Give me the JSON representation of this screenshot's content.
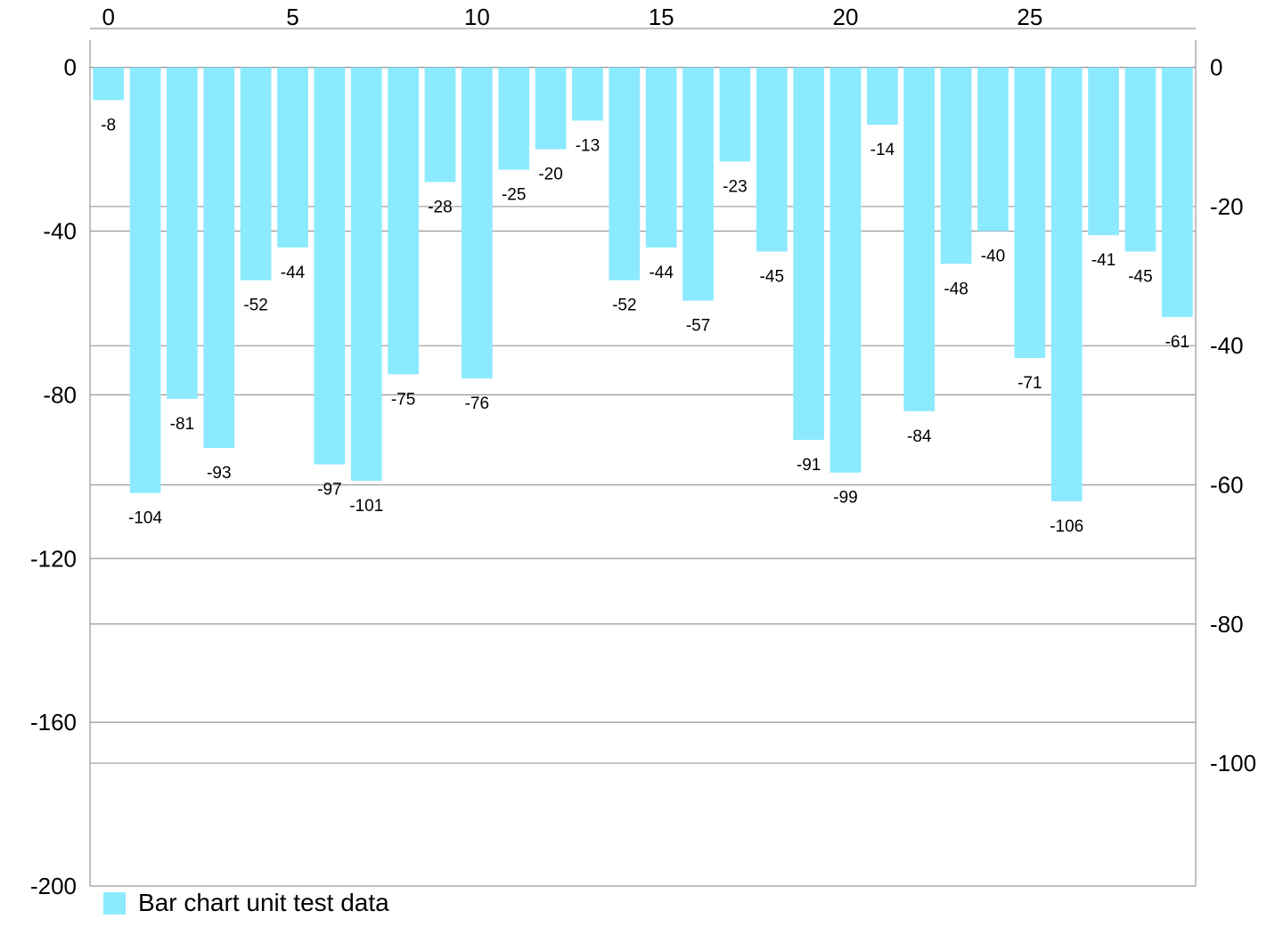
{
  "colors": {
    "bar": "#8ceaff",
    "grid": "#999999",
    "axis": "#999999",
    "text": "#000000"
  },
  "chart_data": {
    "type": "bar",
    "x": [
      0,
      1,
      2,
      3,
      4,
      5,
      6,
      7,
      8,
      9,
      10,
      11,
      12,
      13,
      14,
      15,
      16,
      17,
      18,
      19,
      20,
      21,
      22,
      23,
      24,
      25,
      26,
      27,
      28,
      29
    ],
    "series": [
      {
        "name": "Bar chart unit test data",
        "values": [
          -8,
          -104,
          -81,
          -93,
          -52,
          -44,
          -97,
          -101,
          -75,
          -28,
          -76,
          -25,
          -20,
          -13,
          -52,
          -44,
          -57,
          -23,
          -45,
          -91,
          -99,
          -14,
          -84,
          -48,
          -40,
          -71,
          -106,
          -41,
          -45,
          -61
        ]
      }
    ],
    "data_labels": [
      "-8",
      "-104",
      "-81",
      "-93",
      "-52",
      "-44",
      "-97",
      "-101",
      "-75",
      "-28",
      "-76",
      "-25",
      "-20",
      "-13",
      "-52",
      "-44",
      "-57",
      "-23",
      "-45",
      "-91",
      "-99",
      "-14",
      "-84",
      "-48",
      "-40",
      "-71",
      "-106",
      "-41",
      "-45",
      "-61"
    ],
    "x_axis": {
      "position": "top",
      "range": [
        -0.5,
        29.5
      ],
      "ticks": [
        0,
        5,
        10,
        15,
        20,
        25
      ],
      "tick_labels": [
        "0",
        "5",
        "10",
        "15",
        "20",
        "25"
      ]
    },
    "y_axis_left": {
      "range": [
        -200,
        6.67
      ],
      "ticks": [
        0,
        -40,
        -80,
        -120,
        -160,
        -200
      ],
      "tick_labels": [
        "0",
        "-40",
        "-80",
        "-120",
        "-160",
        "-200"
      ]
    },
    "y_axis_right": {
      "range": [
        -117.65,
        3.92
      ],
      "ticks": [
        0,
        -20,
        -40,
        -60,
        -80,
        -100
      ],
      "tick_labels": [
        "0",
        "-20",
        "-40",
        "-60",
        "-80",
        "-100"
      ]
    },
    "grid": true,
    "legend": {
      "position": "bottom-left",
      "entries": [
        "Bar chart unit test data"
      ]
    },
    "title": "",
    "xlabel": "",
    "ylabel": ""
  }
}
